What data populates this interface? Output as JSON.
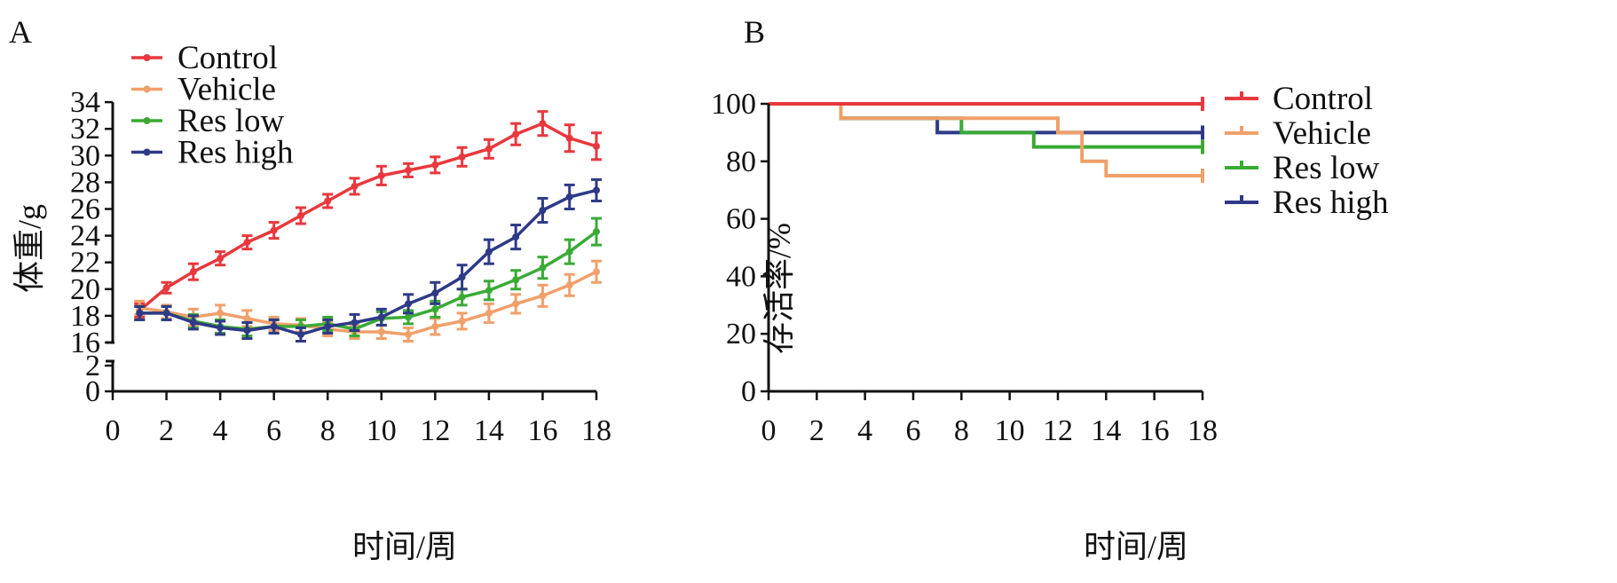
{
  "chart_data": [
    {
      "panel_label": "A",
      "type": "line",
      "xlabel": "时间/周",
      "ylabel": "体重/g",
      "x": [
        1,
        2,
        3,
        4,
        5,
        6,
        7,
        8,
        9,
        10,
        11,
        12,
        13,
        14,
        15,
        16,
        17,
        18
      ],
      "xlim": [
        0,
        18
      ],
      "xticks": [
        "0",
        "2",
        "4",
        "6",
        "8",
        "10",
        "12",
        "14",
        "16",
        "18"
      ],
      "yticks": [
        "0",
        "2",
        "16",
        "18",
        "20",
        "22",
        "24",
        "26",
        "28",
        "30",
        "32",
        "34"
      ],
      "y_axis_break": [
        2,
        16
      ],
      "ylim": [
        0,
        34
      ],
      "legend_position": "top-left",
      "series": [
        {
          "name": "Control",
          "color": "#e8383d",
          "values": [
            18.4,
            20.1,
            21.3,
            22.3,
            23.5,
            24.4,
            25.5,
            26.6,
            27.7,
            28.5,
            28.9,
            29.3,
            29.9,
            30.5,
            31.6,
            32.4,
            31.3,
            30.7
          ],
          "errors": [
            0.5,
            0.4,
            0.6,
            0.5,
            0.5,
            0.6,
            0.6,
            0.5,
            0.6,
            0.7,
            0.5,
            0.6,
            0.7,
            0.7,
            0.8,
            0.9,
            1.0,
            1.0
          ]
        },
        {
          "name": "Vehicle",
          "color": "#f0a06a",
          "values": [
            18.6,
            18.3,
            17.9,
            18.2,
            17.8,
            17.4,
            17.3,
            17.0,
            16.8,
            16.8,
            16.6,
            17.2,
            17.6,
            18.2,
            18.9,
            19.5,
            20.3,
            21.3
          ],
          "errors": [
            0.5,
            0.5,
            0.6,
            0.6,
            0.6,
            0.5,
            0.5,
            0.5,
            0.5,
            0.5,
            0.5,
            0.6,
            0.6,
            0.7,
            0.7,
            0.8,
            0.8,
            0.8
          ]
        },
        {
          "name": "Res low",
          "color": "#3aaa35",
          "values": [
            18.2,
            18.2,
            17.6,
            17.2,
            17.0,
            17.2,
            17.2,
            17.4,
            17.0,
            17.8,
            17.9,
            18.5,
            19.4,
            19.9,
            20.7,
            21.6,
            22.8,
            24.3
          ],
          "errors": [
            0.5,
            0.5,
            0.5,
            0.5,
            0.5,
            0.5,
            0.5,
            0.5,
            0.5,
            0.5,
            0.5,
            0.6,
            0.6,
            0.7,
            0.7,
            0.8,
            0.9,
            1.0
          ]
        },
        {
          "name": "Res high",
          "color": "#2e3a87",
          "values": [
            18.2,
            18.2,
            17.5,
            17.1,
            16.9,
            17.2,
            16.6,
            17.2,
            17.5,
            17.9,
            18.9,
            19.7,
            20.9,
            22.8,
            23.9,
            25.9,
            26.9,
            27.4
          ],
          "errors": [
            0.5,
            0.5,
            0.5,
            0.5,
            0.6,
            0.5,
            0.5,
            0.5,
            0.6,
            0.6,
            0.7,
            0.8,
            0.9,
            0.9,
            0.9,
            0.9,
            0.9,
            0.8
          ]
        }
      ]
    },
    {
      "panel_label": "B",
      "type": "line",
      "step": true,
      "xlabel": "时间/周",
      "ylabel": "存活率/%",
      "xlim": [
        0,
        18
      ],
      "ylim": [
        0,
        100
      ],
      "xticks": [
        "0",
        "2",
        "4",
        "6",
        "8",
        "10",
        "12",
        "14",
        "16",
        "18"
      ],
      "yticks": [
        "0",
        "20",
        "40",
        "60",
        "80",
        "100"
      ],
      "legend_position": "right",
      "series": [
        {
          "name": "Control",
          "color": "#e8383d",
          "steps": [
            [
              0,
              100
            ],
            [
              18,
              100
            ]
          ]
        },
        {
          "name": "Vehicle",
          "color": "#f0a06a",
          "steps": [
            [
              0,
              100
            ],
            [
              3,
              95
            ],
            [
              11,
              95
            ],
            [
              12,
              90
            ],
            [
              13,
              80
            ],
            [
              14,
              75
            ],
            [
              18,
              75
            ]
          ]
        },
        {
          "name": "Res low",
          "color": "#3aaa35",
          "steps": [
            [
              0,
              100
            ],
            [
              3,
              95
            ],
            [
              8,
              90
            ],
            [
              11,
              85
            ],
            [
              18,
              85
            ]
          ]
        },
        {
          "name": "Res high",
          "color": "#2e3a87",
          "steps": [
            [
              0,
              100
            ],
            [
              3,
              95
            ],
            [
              7,
              90
            ],
            [
              18,
              90
            ]
          ]
        }
      ]
    }
  ]
}
